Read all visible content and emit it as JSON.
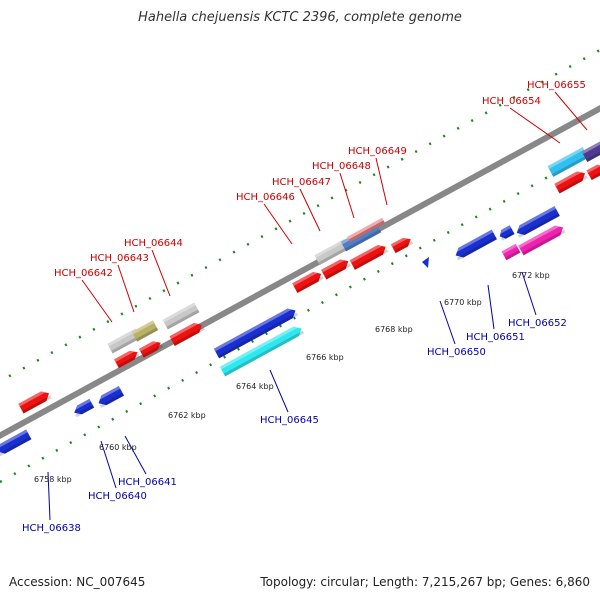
{
  "title": "Hahella chejuensis KCTC 2396, complete genome",
  "footer": {
    "accession": "Accession: NC_007645",
    "summary": "Topology: circular; Length: 7,215,267 bp; Genes: 6,860"
  },
  "colors": {
    "forward_label": "#cc0000",
    "reverse_label": "#0000aa",
    "red": "#ee1111",
    "blue": "#1a2fd0",
    "cyan": "#2ee8f0",
    "gray": "#c8c8c8",
    "olive": "#b8b064",
    "steel": "#4f7fc8",
    "salmon": "#e88080",
    "magenta": "#f020b0",
    "purple": "#503a90",
    "skyblue": "#30c0f0",
    "backbone": "#888888",
    "tick": "#1a8a1a"
  },
  "ticks": [
    "6758 kbp",
    "6760 kbp",
    "6762 kbp",
    "6764 kbp",
    "6766 kbp",
    "6768 kbp",
    "6770 kbp",
    "6772 kbp"
  ],
  "genes": [
    {
      "id": "HCH_06638",
      "strand": "-"
    },
    {
      "id": "HCH_06640",
      "strand": "-"
    },
    {
      "id": "HCH_06641",
      "strand": "-"
    },
    {
      "id": "HCH_06642",
      "strand": "+"
    },
    {
      "id": "HCH_06643",
      "strand": "+"
    },
    {
      "id": "HCH_06644",
      "strand": "+"
    },
    {
      "id": "HCH_06645",
      "strand": "-"
    },
    {
      "id": "HCH_06646",
      "strand": "+"
    },
    {
      "id": "HCH_06647",
      "strand": "+"
    },
    {
      "id": "HCH_06648",
      "strand": "+"
    },
    {
      "id": "HCH_06649",
      "strand": "+"
    },
    {
      "id": "HCH_06650",
      "strand": "-"
    },
    {
      "id": "HCH_06651",
      "strand": "-"
    },
    {
      "id": "HCH_06652",
      "strand": "-"
    },
    {
      "id": "HCH_06654",
      "strand": "+"
    },
    {
      "id": "HCH_06655",
      "strand": "+"
    }
  ]
}
